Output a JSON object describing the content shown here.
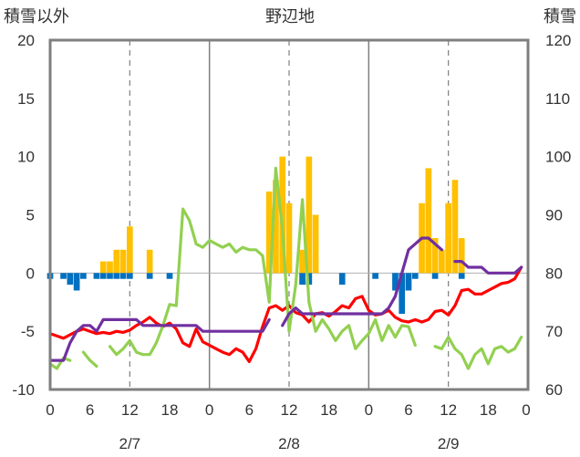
{
  "chart_data": {
    "type": "bar",
    "title": "野辺地",
    "ylabel_left": "積雪以外",
    "ylabel_right": "積雪",
    "ylim_left": [
      -10,
      20
    ],
    "ylim_right": [
      60,
      120
    ],
    "yticks_left": [
      -10,
      -5,
      0,
      5,
      10,
      15,
      20
    ],
    "yticks_right": [
      60,
      70,
      80,
      90,
      100,
      110,
      120
    ],
    "x_hours_range": [
      0,
      72
    ],
    "xtick_labels": [
      "0",
      "6",
      "12",
      "18",
      "0",
      "6",
      "12",
      "18",
      "0",
      "6",
      "12",
      "18",
      "0"
    ],
    "date_labels": [
      "2/7",
      "2/8",
      "2/9"
    ],
    "grid": "dashed vertical at 12h, solid day separators",
    "series": [
      {
        "name": "",
        "kind": "bar",
        "color": "#FFC000",
        "x": [
          8,
          9,
          10,
          11,
          12,
          15,
          33,
          34,
          35,
          36,
          38,
          39,
          40,
          56,
          57,
          58,
          59,
          60,
          61,
          62
        ],
        "values": [
          1,
          1,
          2,
          2,
          4,
          2,
          7,
          8,
          10,
          6,
          2,
          10,
          5,
          6,
          9,
          3,
          2,
          6,
          8,
          3
        ]
      },
      {
        "name": "",
        "kind": "bar",
        "color": "#0070C0",
        "x": [
          0,
          2,
          3,
          4,
          5,
          7,
          8,
          9,
          10,
          11,
          12,
          15,
          18,
          38,
          39,
          44,
          49,
          52,
          53,
          54,
          55,
          58,
          62
        ],
        "values": [
          -0.5,
          -0.5,
          -1,
          -1.5,
          -0.5,
          -0.5,
          -0.5,
          -0.5,
          -0.5,
          -0.5,
          -0.5,
          -0.5,
          -0.5,
          -1,
          -1,
          -1,
          -0.5,
          -1.5,
          -3.5,
          -1.5,
          -0.5,
          -0.5,
          -0.5
        ]
      },
      {
        "name": "",
        "kind": "line",
        "axis": "left",
        "color": "#FF0000",
        "x": [
          0,
          1,
          2,
          3,
          4,
          5,
          6,
          7,
          8,
          9,
          10,
          11,
          12,
          13,
          14,
          15,
          16,
          17,
          18,
          19,
          20,
          21,
          22,
          23,
          24,
          25,
          26,
          27,
          28,
          29,
          30,
          31,
          32,
          33,
          34,
          35,
          36,
          37,
          38,
          39,
          40,
          41,
          42,
          43,
          44,
          45,
          46,
          47,
          48,
          49,
          50,
          51,
          52,
          53,
          54,
          55,
          56,
          57,
          58,
          59,
          60,
          61,
          62,
          63,
          64,
          65,
          66,
          67,
          68,
          69,
          70,
          71
        ],
        "values": [
          -5.2,
          -5.4,
          -5.6,
          -5.3,
          -5.0,
          -4.8,
          -5.0,
          -5.2,
          -5.1,
          -5.2,
          -5.0,
          -5.1,
          -4.9,
          -4.5,
          -4.2,
          -3.8,
          -4.3,
          -4.6,
          -4.3,
          -4.8,
          -6.0,
          -6.3,
          -4.8,
          -5.9,
          -6.2,
          -6.5,
          -6.8,
          -7.0,
          -6.5,
          -6.8,
          -7.6,
          -6.5,
          -4.6,
          -3.0,
          -2.8,
          -3.2,
          -2.8,
          -3.4,
          -3.6,
          -4.2,
          -3.5,
          -3.4,
          -3.7,
          -3.3,
          -2.8,
          -3.0,
          -2.2,
          -2.0,
          -3.2,
          -3.6,
          -3.5,
          -3.2,
          -3.8,
          -4.1,
          -4.2,
          -4.0,
          -4.2,
          -4.0,
          -3.3,
          -3.2,
          -3.6,
          -2.8,
          -1.5,
          -1.4,
          -1.8,
          -1.8,
          -1.5,
          -1.2,
          -0.9,
          -0.8,
          -0.5,
          0.5
        ]
      },
      {
        "name": "",
        "kind": "line",
        "axis": "left",
        "color": "#92D050",
        "x": [
          0,
          1,
          2,
          3,
          null,
          5,
          6,
          7,
          null,
          9,
          10,
          11,
          12,
          13,
          14,
          15,
          16,
          17,
          18,
          19,
          20,
          21,
          22,
          23,
          24,
          25,
          26,
          27,
          28,
          29,
          30,
          31,
          32,
          33,
          34,
          35,
          36,
          37,
          38,
          39,
          40,
          41,
          42,
          43,
          44,
          45,
          46,
          47,
          48,
          49,
          50,
          51,
          52,
          53,
          54,
          55,
          56,
          57,
          58,
          59,
          60,
          61,
          62,
          63,
          64,
          65,
          66,
          67,
          68,
          69,
          70,
          71
        ],
        "values": [
          -7.8,
          -8.2,
          -7.3,
          -7.5,
          null,
          -6.8,
          -7.5,
          -8.0,
          null,
          -6.3,
          -7.0,
          -6.5,
          -5.8,
          -6.8,
          -7.0,
          -7.0,
          -6.0,
          -4.5,
          -2.7,
          -2.8,
          5.5,
          4.5,
          2.5,
          2.2,
          2.8,
          2.5,
          2.2,
          2.5,
          1.8,
          2.2,
          2.0,
          2.0,
          1.5,
          -2.5,
          9.0,
          3.8,
          -5.0,
          -1.0,
          6.3,
          -2.5,
          -5.0,
          -4.0,
          -4.8,
          -5.8,
          -5.0,
          -4.5,
          -6.5,
          -5.8,
          -5.2,
          -4.0,
          -5.8,
          -4.5,
          -5.5,
          -4.5,
          -4.6,
          -6.2,
          null,
          null,
          -6.3,
          -6.5,
          -5.5,
          -6.5,
          -7.0,
          -8.2,
          -7.0,
          -6.5,
          -7.8,
          -6.5,
          -6.3,
          -6.8,
          -6.5,
          -5.5
        ]
      },
      {
        "name": "",
        "kind": "line",
        "axis": "right",
        "color": "#7030A0",
        "x": [
          0,
          1,
          2,
          3,
          4,
          5,
          6,
          7,
          8,
          9,
          10,
          11,
          12,
          13,
          14,
          15,
          16,
          17,
          18,
          19,
          20,
          21,
          22,
          23,
          24,
          25,
          26,
          27,
          28,
          29,
          30,
          31,
          32,
          33,
          null,
          35,
          36,
          37,
          38,
          39,
          40,
          41,
          42,
          43,
          44,
          45,
          46,
          47,
          48,
          49,
          50,
          51,
          52,
          53,
          54,
          55,
          56,
          57,
          58,
          59,
          null,
          61,
          62,
          63,
          64,
          65,
          66,
          67,
          68,
          69,
          70,
          71
        ],
        "values": [
          65,
          65,
          65,
          68,
          70,
          71,
          71,
          70,
          72,
          72,
          72,
          72,
          72,
          72,
          71,
          71,
          71,
          71,
          71,
          71,
          71,
          71,
          71,
          70,
          70,
          70,
          70,
          70,
          70,
          70,
          70,
          70,
          70,
          72,
          null,
          71,
          73,
          74,
          73,
          73,
          73,
          73,
          73,
          73,
          73,
          73,
          73,
          73,
          73,
          73,
          73,
          74,
          76,
          80,
          84,
          85,
          86,
          86,
          85,
          84,
          null,
          82,
          82,
          81,
          81,
          81,
          80,
          80,
          80,
          80,
          80,
          81
        ]
      }
    ]
  }
}
